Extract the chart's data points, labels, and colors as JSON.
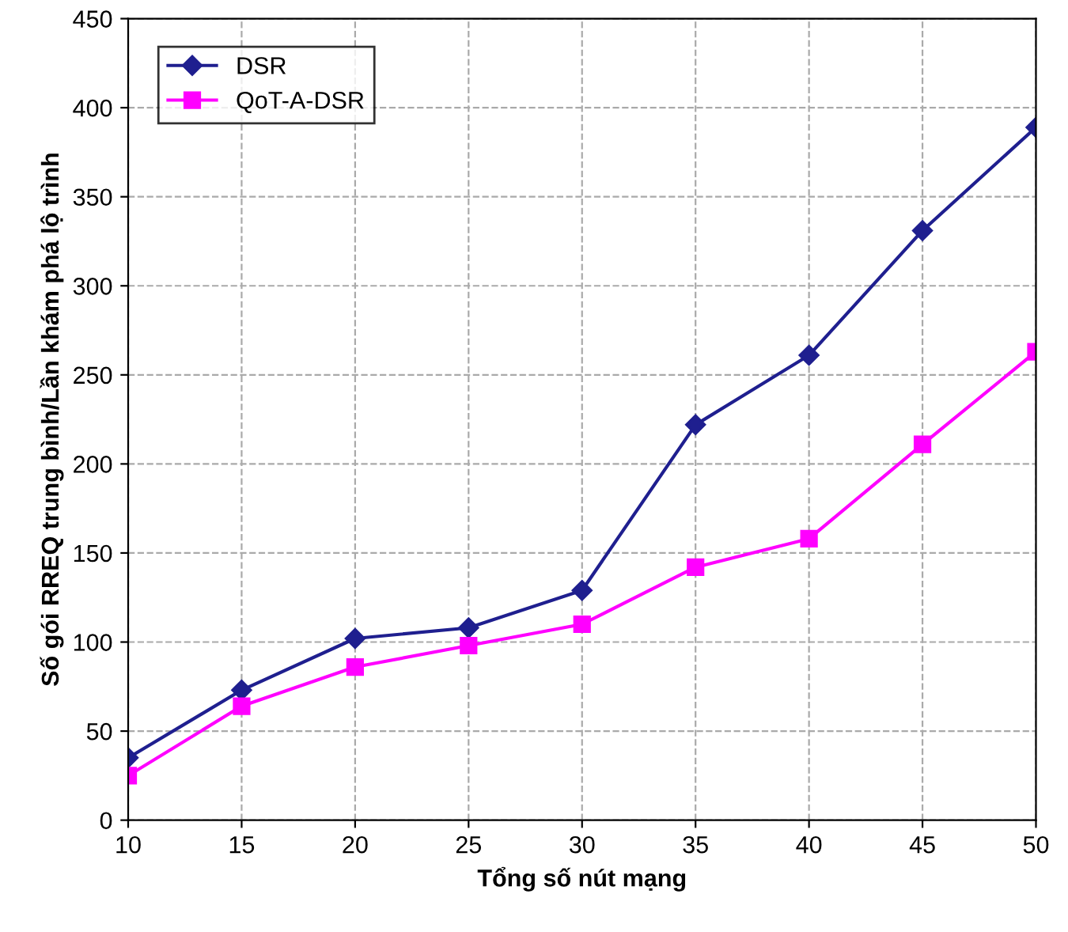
{
  "chart_data": {
    "type": "line",
    "xlabel": "Tổng số nút mạng",
    "ylabel": "Số gói RREQ trung bình/Lần khám phá lộ trình",
    "x": [
      10,
      15,
      20,
      25,
      30,
      35,
      40,
      45,
      50
    ],
    "series": [
      {
        "name": "DSR",
        "color": "#1f1f8f",
        "marker": "diamond",
        "values": [
          35,
          73,
          102,
          108,
          129,
          222,
          261,
          331,
          389
        ]
      },
      {
        "name": "QoT-A-DSR",
        "color": "#ff00ff",
        "marker": "square",
        "values": [
          25,
          64,
          86,
          98,
          110,
          142,
          158,
          211,
          263
        ]
      }
    ],
    "xlim": [
      10,
      50
    ],
    "xticks": [
      10,
      15,
      20,
      25,
      30,
      35,
      40,
      45,
      50
    ],
    "ylim": [
      0,
      450
    ],
    "yticks": [
      0,
      50,
      100,
      150,
      200,
      250,
      300,
      350,
      400,
      450
    ],
    "grid": true,
    "legend": "top left",
    "line_style": "solid"
  }
}
